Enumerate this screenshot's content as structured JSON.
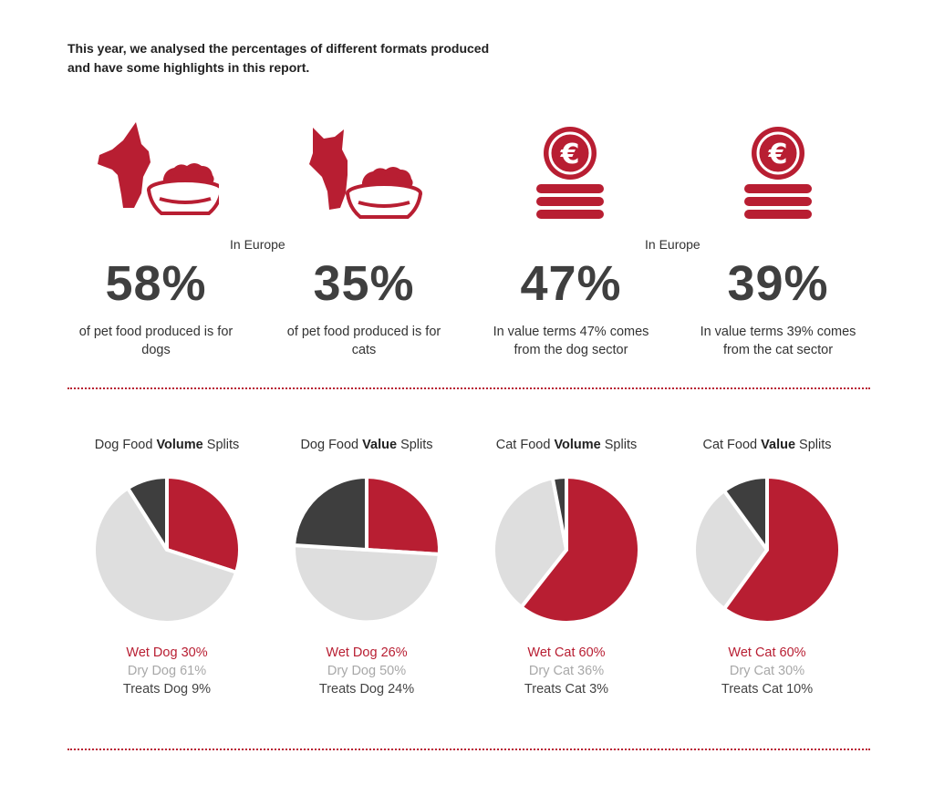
{
  "intro": "This year, we analysed the percentages of different formats produced and have some highlights in this report.",
  "colors": {
    "red": "#b81e32",
    "light_grey": "#dedede",
    "dark_grey": "#3e3e3e",
    "text": "#3a3a3a"
  },
  "icons": [
    "dog-bowl-icon",
    "cat-bowl-icon",
    "euro-coin-stack-icon",
    "euro-coin-stack-icon"
  ],
  "in_europe_labels": [
    "In Europe",
    "In Europe"
  ],
  "stats": [
    {
      "value": "58%",
      "description": "of pet food produced is for dogs"
    },
    {
      "value": "35%",
      "description": "of pet food produced is for cats"
    },
    {
      "value": "47%",
      "description": "In value terms 47% comes from the dog sector"
    },
    {
      "value": "39%",
      "description": "In value terms 39% comes from the cat sector"
    }
  ],
  "chart_data": [
    {
      "type": "pie",
      "title_prefix": "Dog Food ",
      "title_bold": "Volume",
      "title_suffix": " Splits",
      "slices": [
        {
          "label": "Wet Dog 30%",
          "value": 30
        },
        {
          "label": "Dry Dog 61%",
          "value": 61
        },
        {
          "label": "Treats Dog 9%",
          "value": 9
        }
      ]
    },
    {
      "type": "pie",
      "title_prefix": "Dog Food ",
      "title_bold": "Value",
      "title_suffix": " Splits",
      "slices": [
        {
          "label": "Wet Dog 26%",
          "value": 26
        },
        {
          "label": "Dry Dog 50%",
          "value": 50
        },
        {
          "label": "Treats Dog 24%",
          "value": 24
        }
      ]
    },
    {
      "type": "pie",
      "title_prefix": "Cat Food ",
      "title_bold": "Volume",
      "title_suffix": " Splits",
      "slices": [
        {
          "label": "Wet Cat 60%",
          "value": 60
        },
        {
          "label": "Dry Cat 36%",
          "value": 36
        },
        {
          "label": "Treats Cat 3%",
          "value": 3
        }
      ]
    },
    {
      "type": "pie",
      "title_prefix": "Cat Food ",
      "title_bold": "Value",
      "title_suffix": " Splits",
      "slices": [
        {
          "label": "Wet Cat 60%",
          "value": 60
        },
        {
          "label": "Dry Cat 30%",
          "value": 30
        },
        {
          "label": "Treats Cat 10%",
          "value": 10
        }
      ]
    }
  ]
}
